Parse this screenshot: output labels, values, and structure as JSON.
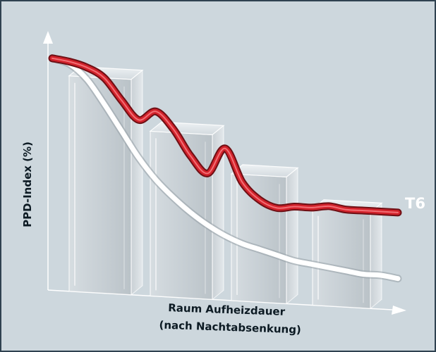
{
  "colors": {
    "background": "#cdd7dd",
    "frame": "#2f4250",
    "axis": "#ffffff",
    "red_curve": "#d2222b",
    "white_curve": "#ffffff",
    "bar_glass": "#bfc7cc"
  },
  "chart_data": {
    "type": "bar",
    "title": "",
    "xlabel_line1": "Raum Aufheizdauer",
    "xlabel_line2": "(nach Nachtabsenkung)",
    "ylabel": "PPD-Index (%)",
    "ylim": [
      0,
      100
    ],
    "grid": false,
    "categories": [
      "",
      "",
      "",
      ""
    ],
    "values": [
      85,
      65,
      50,
      38
    ],
    "series": [
      {
        "name": "T6",
        "kind": "line",
        "x": [
          0,
          0.5,
          1,
          1.5,
          2,
          2.5,
          3,
          3.5,
          4,
          4.5,
          5,
          5.5,
          6,
          6.5,
          7,
          7.5,
          8,
          8.5,
          9,
          9.5,
          10
        ],
        "y": [
          90,
          89,
          87,
          83,
          74,
          66,
          70,
          63,
          52,
          45,
          56,
          42,
          35,
          32,
          33,
          33,
          34,
          33,
          33,
          33,
          33
        ]
      },
      {
        "name": "",
        "kind": "line",
        "x": [
          0,
          0.5,
          1,
          1.5,
          2,
          2.5,
          3,
          3.5,
          4,
          4.5,
          5,
          5.5,
          6,
          6.5,
          7,
          7.5,
          8,
          8.5,
          9,
          9.5,
          10
        ],
        "y": [
          90,
          88,
          82,
          72,
          61,
          50,
          41,
          34,
          28,
          23,
          19,
          16,
          14,
          12,
          10,
          9,
          8,
          7,
          6,
          6,
          5
        ]
      }
    ],
    "legend_label": "T6"
  }
}
